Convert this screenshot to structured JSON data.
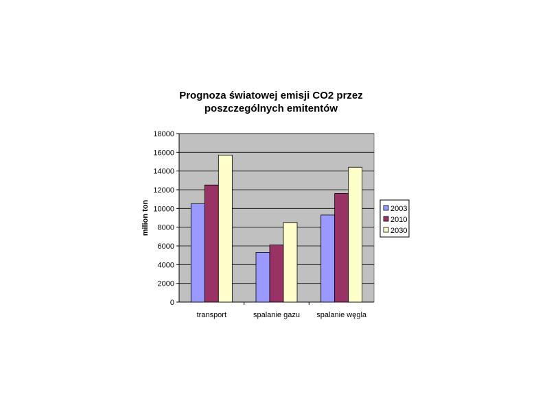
{
  "chart_data": {
    "type": "bar",
    "title_lines": [
      "Prognoza światowej emisji CO2 przez",
      "poszczególnych emitentów"
    ],
    "xlabel": "",
    "ylabel": "milion ton",
    "categories": [
      "transport",
      "spalanie gazu",
      "spalanie węgla"
    ],
    "series": [
      {
        "name": "2003",
        "values": [
          10500,
          5300,
          9300
        ]
      },
      {
        "name": "2010",
        "values": [
          12500,
          6100,
          11600
        ]
      },
      {
        "name": "2030",
        "values": [
          15700,
          8500,
          14400
        ]
      }
    ],
    "ylim": [
      0,
      18000
    ],
    "yticks": [
      0,
      2000,
      4000,
      6000,
      8000,
      10000,
      12000,
      14000,
      16000,
      18000
    ],
    "grid": true,
    "legend_position": "right",
    "colors": {
      "plot_background": "#c0c0c0",
      "series": [
        "#9999ff",
        "#993366",
        "#ffffcc"
      ],
      "bar_outline": "#000000",
      "gridline": "#000000"
    }
  }
}
